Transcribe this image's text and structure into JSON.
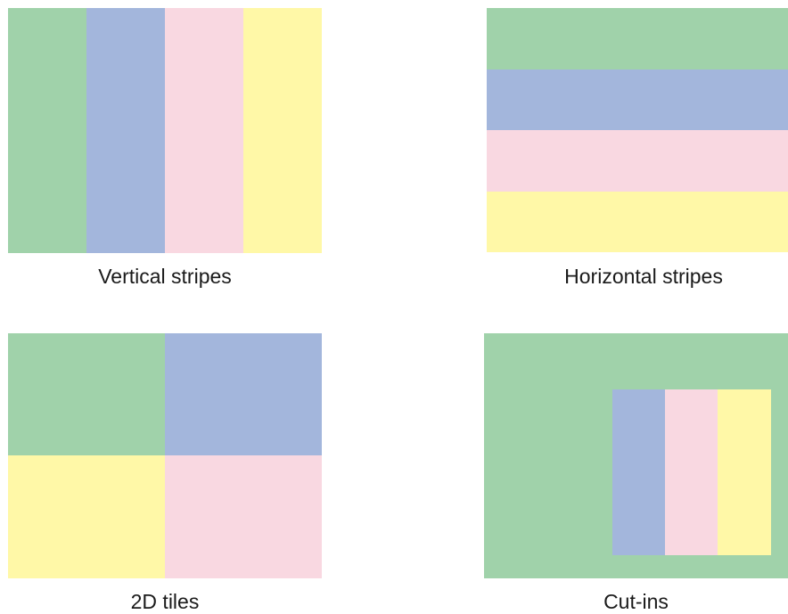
{
  "colors": {
    "green": "#a0d2aa",
    "blue": "#a3b6dc",
    "pink": "#f9d8e1",
    "yellow": "#fff8a7"
  },
  "panels": [
    {
      "caption": "Vertical stripes"
    },
    {
      "caption": "Horizontal stripes"
    },
    {
      "caption": "2D tiles"
    },
    {
      "caption": "Cut-ins"
    }
  ]
}
